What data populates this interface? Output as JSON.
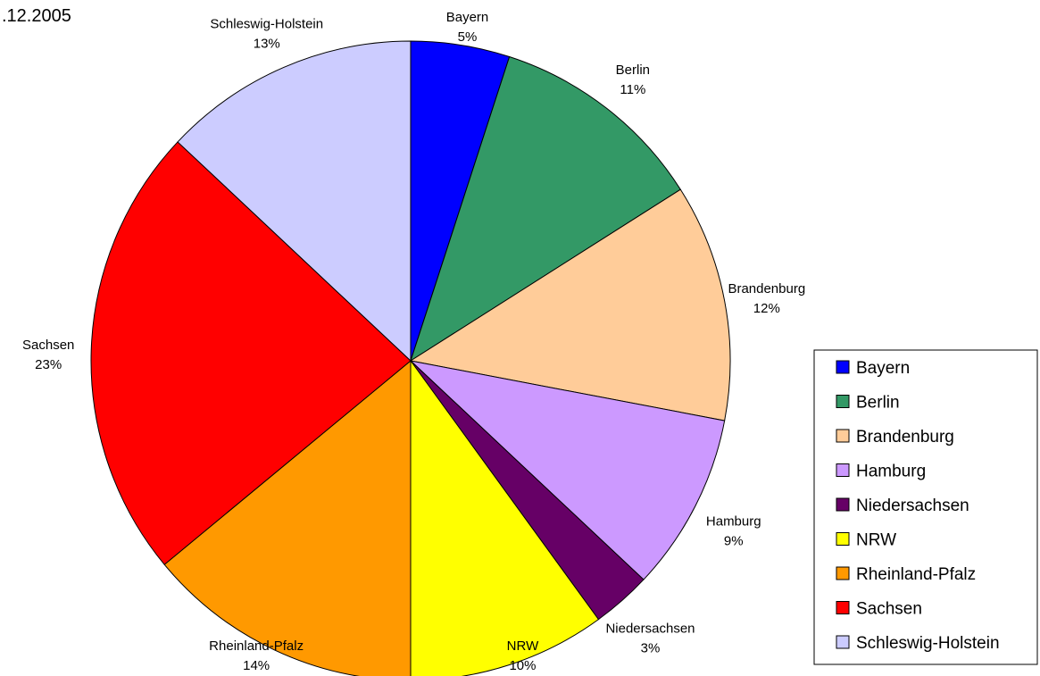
{
  "chart_data": {
    "type": "pie",
    "title": ".12.2005",
    "legend_position": "right",
    "slices": [
      {
        "name": "Bayern",
        "value": 5,
        "label": "5%",
        "color": "#0000ff"
      },
      {
        "name": "Berlin",
        "value": 11,
        "label": "11%",
        "color": "#339966"
      },
      {
        "name": "Brandenburg",
        "value": 12,
        "label": "12%",
        "color": "#ffcc99"
      },
      {
        "name": "Hamburg",
        "value": 9,
        "label": "9%",
        "color": "#cc99ff"
      },
      {
        "name": "Niedersachsen",
        "value": 3,
        "label": "3%",
        "color": "#660066"
      },
      {
        "name": "NRW",
        "value": 10,
        "label": "10%",
        "color": "#ffff00"
      },
      {
        "name": "Rheinland-Pfalz",
        "value": 14,
        "label": "14%",
        "color": "#ff9900"
      },
      {
        "name": "Sachsen",
        "value": 23,
        "label": "23%",
        "color": "#ff0000"
      },
      {
        "name": "Schleswig-Holstein",
        "value": 13,
        "label": "13%",
        "color": "#ccccff"
      }
    ]
  }
}
